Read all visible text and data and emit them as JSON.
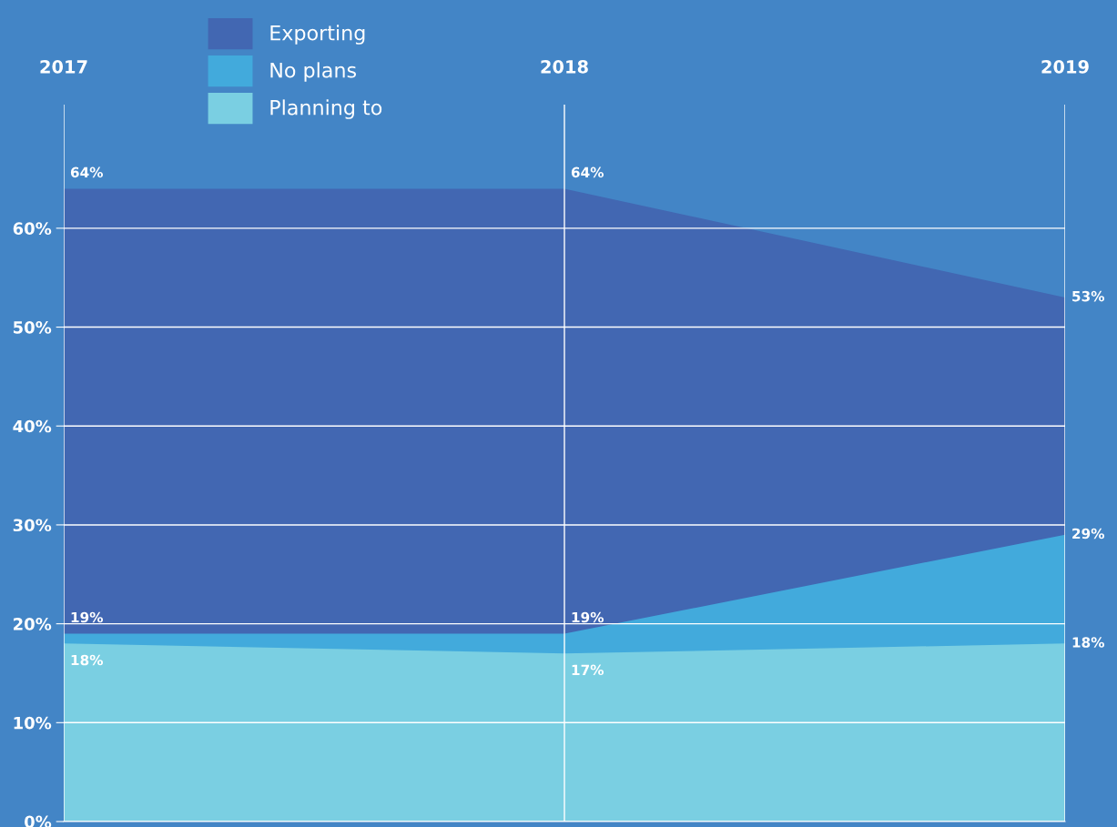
{
  "chart_data": {
    "type": "area",
    "categories": [
      "2017",
      "2018",
      "2019"
    ],
    "series": [
      {
        "name": "Exporting",
        "color": "#4267b2",
        "values": [
          64,
          64,
          53
        ],
        "value_labels": [
          "64%",
          "64%",
          "53%"
        ]
      },
      {
        "name": "No plans",
        "color": "#42aadc",
        "values": [
          19,
          19,
          29
        ],
        "value_labels": [
          "19%",
          "19%",
          "29%"
        ]
      },
      {
        "name": "Planning to",
        "color": "#7acfe2",
        "values": [
          18,
          17,
          18
        ],
        "value_labels": [
          "18%",
          "17%",
          "18%"
        ]
      }
    ],
    "ylim": [
      0,
      72.5
    ],
    "yticks": [
      {
        "value": 0,
        "label": "0%"
      },
      {
        "value": 10,
        "label": "10%"
      },
      {
        "value": 20,
        "label": "20%"
      },
      {
        "value": 30,
        "label": "30%"
      },
      {
        "value": 40,
        "label": "40%"
      },
      {
        "value": 50,
        "label": "50%"
      },
      {
        "value": 60,
        "label": "60%"
      }
    ],
    "grid": true,
    "legend": "top left"
  }
}
